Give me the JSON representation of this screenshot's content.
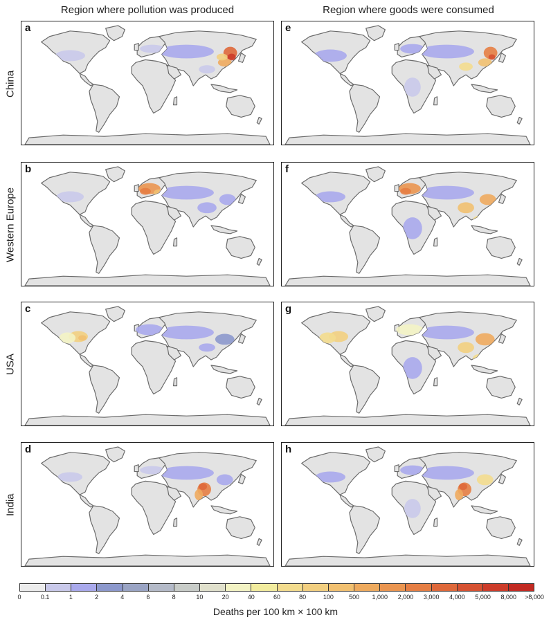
{
  "headers": {
    "left": "Region where pollution was produced",
    "right": "Region where goods were consumed"
  },
  "rows": [
    {
      "label": "China",
      "left_letter": "a",
      "right_letter": "e",
      "left_hotspot": "china",
      "right_hotspot": "china_plus"
    },
    {
      "label": "Western Europe",
      "left_letter": "b",
      "right_letter": "f",
      "left_hotspot": "europe",
      "right_hotspot": "europe_plus"
    },
    {
      "label": "USA",
      "left_letter": "c",
      "right_letter": "g",
      "left_hotspot": "usa",
      "right_hotspot": "usa_plus"
    },
    {
      "label": "India",
      "left_letter": "d",
      "right_letter": "h",
      "left_hotspot": "india",
      "right_hotspot": "india_plus"
    }
  ],
  "legend": {
    "title": "Deaths per 100 km × 100 km",
    "ticks": [
      "0",
      "0.1",
      "1",
      "2",
      "4",
      "6",
      "8",
      "10",
      "20",
      "40",
      "60",
      "80",
      "100",
      "500",
      "1,000",
      "2,000",
      "3,000",
      "4,000",
      "5,000",
      "8,000",
      ">8,000"
    ],
    "colors": [
      "#ececec",
      "#c9c9ea",
      "#a9a9ec",
      "#8c98cc",
      "#9aa4c4",
      "#b4bac8",
      "#c8ccc8",
      "#e0e0cc",
      "#f3f3c4",
      "#f2ec9e",
      "#f3dc8e",
      "#f2cf80",
      "#f1c070",
      "#eeaa5e",
      "#ea9550",
      "#e57e44",
      "#de683a",
      "#d65232",
      "#cc3c2a",
      "#c22a22"
    ]
  },
  "map_colors": {
    "land": "#e3e3e3",
    "coast": "#6a6a6a",
    "background": "#ffffff"
  }
}
